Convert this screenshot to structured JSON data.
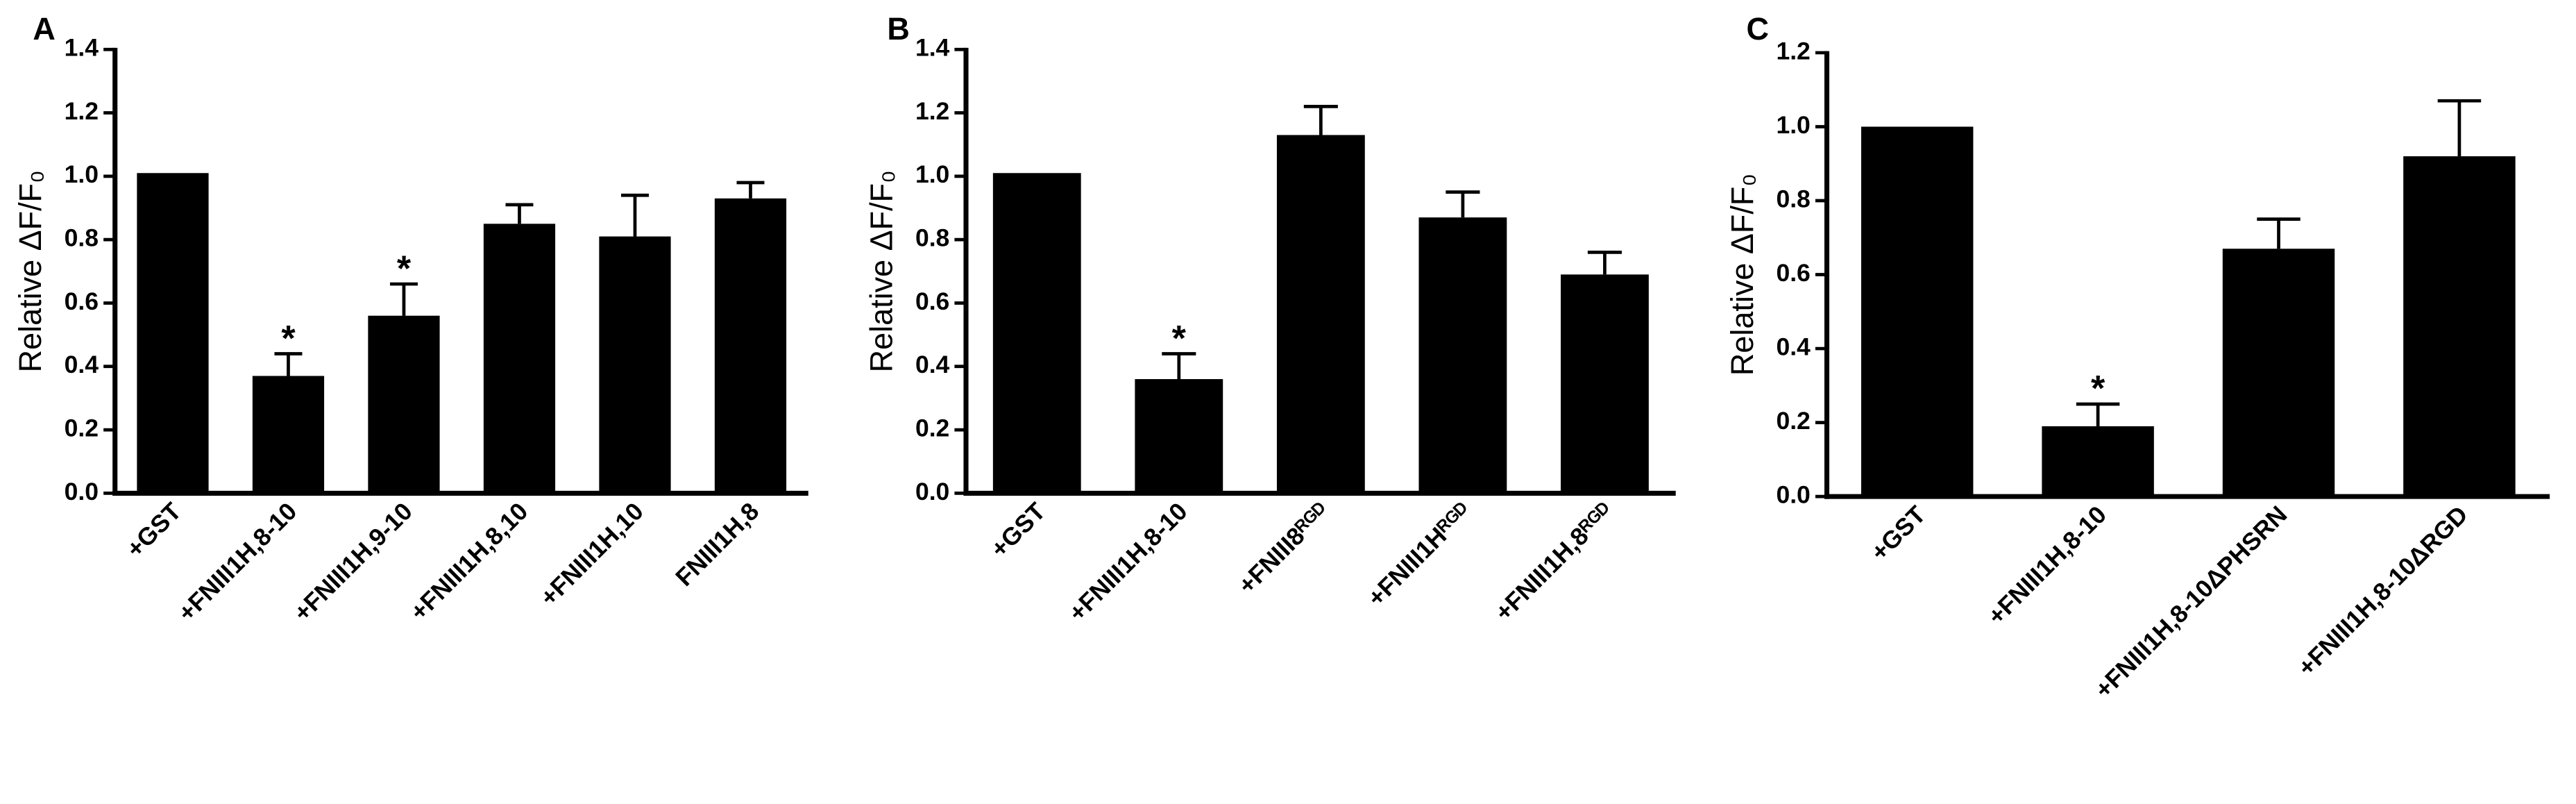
{
  "chart_data": [
    {
      "type": "bar",
      "panel": "A",
      "y_label": "Relative ΔF/F₀",
      "categories": [
        "+GST",
        "+FNIII1H,8-10",
        "+FNIII1H,9-10",
        "+FNIII1H,8,10",
        "+FNIII1H,10",
        "FNIII1H,8"
      ],
      "values": [
        1.01,
        0.37,
        0.56,
        0.85,
        0.81,
        0.93
      ],
      "errors": [
        0,
        0.07,
        0.1,
        0.06,
        0.13,
        0.05
      ],
      "significance": [
        null,
        "*",
        "*",
        null,
        null,
        null
      ],
      "color": "#000000",
      "ylim": [
        0,
        1.4
      ],
      "yticks": [
        {
          "value": 0,
          "label": "0.0"
        },
        0.2,
        0.4,
        0.6,
        0.8,
        {
          "value": 1,
          "label": "1.0"
        },
        1.2,
        1.4
      ]
    },
    {
      "type": "bar",
      "panel": "B",
      "y_label": "Relative ΔF/F₀",
      "categories": [
        "+GST",
        "+FNIII1H,8-10",
        "+FNIII8ᴿᴳᴰ",
        "+FNIII1Hᴿᴳᴰ",
        "+FNIII1H,8ᴿᴳᴰ"
      ],
      "values": [
        1.01,
        0.36,
        1.13,
        0.87,
        0.69
      ],
      "errors": [
        0,
        0.08,
        0.09,
        0.08,
        0.07
      ],
      "significance": [
        null,
        "*",
        null,
        null,
        null
      ],
      "color": "#000000",
      "ylim": [
        0,
        1.4
      ],
      "yticks": [
        {
          "value": 0,
          "label": "0.0"
        },
        0.2,
        0.4,
        0.6,
        0.8,
        {
          "value": 1,
          "label": "1.0"
        },
        1.2,
        1.4
      ]
    },
    {
      "type": "bar",
      "panel": "C",
      "y_label": "Relative ΔF/F₀",
      "categories": [
        "+GST",
        "+FNIII1H,8-10",
        "+FNIII1H,8-10ΔPHSRN",
        "+FNIII1H,8-10ΔRGD"
      ],
      "values": [
        1.0,
        0.19,
        0.67,
        0.92
      ],
      "errors": [
        0,
        0.06,
        0.08,
        0.15
      ],
      "significance": [
        null,
        "*",
        null,
        null
      ],
      "color": "#000000",
      "ylim": [
        0,
        1.2
      ],
      "yticks": [
        {
          "value": 0,
          "label": "0.0"
        },
        0.2,
        0.4,
        0.6,
        0.8,
        {
          "value": 1,
          "label": "1.0"
        },
        1.2
      ]
    }
  ]
}
